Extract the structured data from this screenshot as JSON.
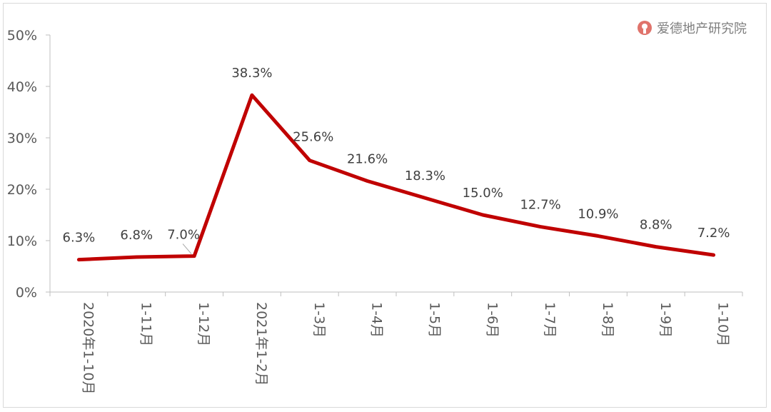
{
  "watermark": {
    "text": "爱德地产研究院",
    "logo_icon": "aide-logo-icon",
    "logo_color": "#e0736b"
  },
  "chart_data": {
    "type": "line",
    "title": "",
    "xlabel": "",
    "ylabel": "",
    "categories": [
      "2020年1-10月",
      "1-11月",
      "1-12月",
      "2021年1-2月",
      "1-3月",
      "1-4月",
      "1-5月",
      "1-6月",
      "1-7月",
      "1-8月",
      "1-9月",
      "1-10月"
    ],
    "series": [
      {
        "values": [
          6.3,
          6.8,
          7.0,
          38.3,
          25.6,
          21.6,
          18.3,
          15.0,
          12.7,
          10.9,
          8.8,
          7.2
        ],
        "labels": [
          "6.3%",
          "6.8%",
          "7.0%",
          "38.3%",
          "25.6%",
          "21.6%",
          "18.3%",
          "15.0%",
          "12.7%",
          "10.9%",
          "8.8%",
          "7.2%"
        ],
        "color": "#c00000"
      }
    ],
    "ylim": [
      0,
      50
    ],
    "yticks": [
      "0%",
      "10%",
      "20%",
      "30%",
      "40%",
      "50%"
    ],
    "grid": false,
    "legend": "none"
  }
}
